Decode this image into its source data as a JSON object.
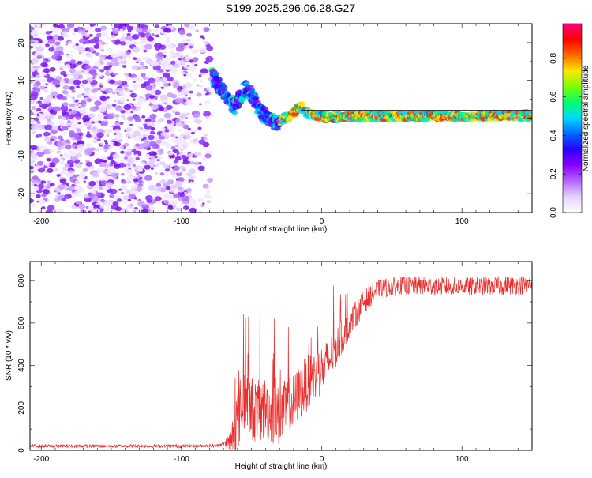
{
  "title": "S199.2025.296.06.28.G27",
  "chart_data": [
    {
      "type": "heatmap",
      "xlabel": "Height of straight line (km)",
      "ylabel": "Frequency (Hz)",
      "xlim": [
        -208,
        150
      ],
      "ylim": [
        -25,
        25
      ],
      "xticks": [
        -200,
        -100,
        0,
        100
      ],
      "xtick_labels": [
        "-200",
        "-100",
        "0",
        "100"
      ],
      "yticks": [
        -20,
        -10,
        0,
        10,
        20
      ],
      "ytick_labels": [
        "-20",
        "-10",
        "0",
        "10",
        "20"
      ],
      "noise_region_x": [
        -208,
        -78
      ],
      "ridge": {
        "x": [
          -78,
          -74,
          -70,
          -66,
          -62,
          -58,
          -54,
          -50,
          -46,
          -42,
          -38,
          -34,
          -30,
          -26,
          -22,
          -18,
          -15,
          -12,
          -8,
          -4,
          0,
          10,
          30,
          60,
          90,
          120,
          150
        ],
        "freq": [
          11,
          9,
          7,
          5,
          3,
          6,
          8,
          6,
          3,
          1,
          0,
          -1,
          -1,
          0,
          0.5,
          2.5,
          3,
          2,
          1,
          0.5,
          0.3,
          0.3,
          0.5,
          0.5,
          0.5,
          0.6,
          0.7
        ]
      }
    },
    {
      "type": "line",
      "xlabel": "Height of straight line (km)",
      "ylabel": "SNR (10 * v/v)",
      "xlim": [
        -208,
        150
      ],
      "ylim": [
        0,
        890
      ],
      "xticks": [
        -200,
        -100,
        0,
        100
      ],
      "xtick_labels": [
        "-200",
        "-100",
        "0",
        "100"
      ],
      "yticks": [
        0,
        200,
        400,
        600,
        800
      ],
      "ytick_labels": [
        "0",
        "200",
        "400",
        "600",
        "800"
      ],
      "color": "#e8302e",
      "trend": {
        "x": [
          -208,
          -100,
          -75,
          -65,
          -60,
          -55,
          -50,
          -45,
          -40,
          -35,
          -30,
          -25,
          -20,
          -15,
          -10,
          -5,
          0,
          5,
          10,
          15,
          20,
          25,
          30,
          35,
          40,
          50,
          60,
          80,
          100,
          120,
          150
        ],
        "y": [
          20,
          20,
          22,
          40,
          150,
          250,
          200,
          180,
          200,
          170,
          160,
          200,
          220,
          280,
          320,
          350,
          380,
          420,
          480,
          540,
          600,
          650,
          700,
          730,
          760,
          770,
          775,
          775,
          770,
          775,
          780
        ]
      },
      "noise_amplitude": {
        "x": [
          -208,
          -70,
          -65,
          -60,
          -40,
          -20,
          0,
          20,
          40,
          150
        ],
        "amp": [
          8,
          8,
          60,
          160,
          150,
          140,
          120,
          70,
          45,
          45
        ]
      }
    }
  ],
  "colorbar": {
    "label": "Normalized spectral amplitude",
    "ticks": [
      0.0,
      0.2,
      0.4,
      0.6,
      0.8
    ],
    "tick_labels": [
      "0.0",
      "0.2",
      "0.4",
      "0.6",
      "0.8"
    ],
    "max": 0.98,
    "stops": [
      "#ffffff",
      "#e6d2ff",
      "#b466ff",
      "#8a00ff",
      "#2b00ff",
      "#0066ff",
      "#00d8ff",
      "#00ff6e",
      "#7cff00",
      "#ffe600",
      "#ff6a00",
      "#ff0000",
      "#ff007f"
    ]
  }
}
